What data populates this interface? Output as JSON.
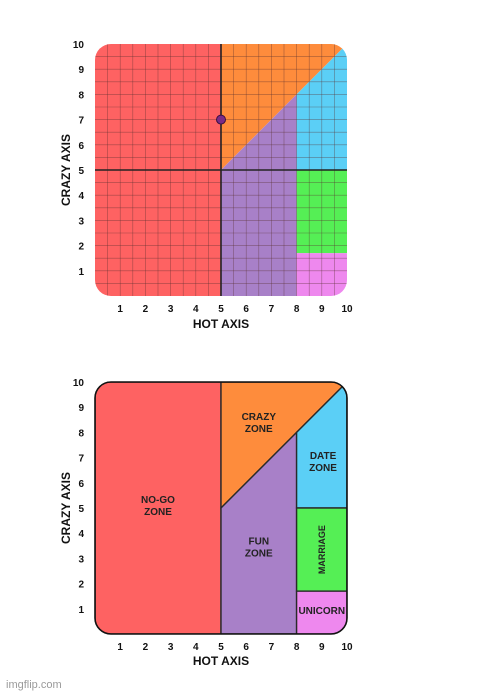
{
  "colors": {
    "nogo": "#fe6262",
    "crazy": "#fe8c3c",
    "fun": "#a880c8",
    "date": "#5bcff6",
    "marriage": "#55ef55",
    "unicorn": "#ee88ee",
    "dot": "#7b2a86",
    "grid": "#5a3030"
  },
  "top_chart": {
    "xlabel": "HOT AXIS",
    "ylabel": "CRAZY AXIS",
    "x_ticks": [
      "1",
      "2",
      "3",
      "4",
      "5",
      "6",
      "7",
      "8",
      "9",
      "10"
    ],
    "y_ticks": [
      "1",
      "2",
      "3",
      "4",
      "5",
      "6",
      "7",
      "8",
      "9",
      "10"
    ],
    "point": {
      "x": 5,
      "y": 7
    }
  },
  "bottom_chart": {
    "xlabel": "HOT AXIS",
    "ylabel": "CRAZY AXIS",
    "x_ticks": [
      "1",
      "2",
      "3",
      "4",
      "5",
      "6",
      "7",
      "8",
      "9",
      "10"
    ],
    "y_ticks": [
      "1",
      "2",
      "3",
      "4",
      "5",
      "6",
      "7",
      "8",
      "9",
      "10"
    ],
    "zones": {
      "nogo": [
        "NO-GO",
        "ZONE"
      ],
      "crazy": [
        "CRAZY",
        "ZONE"
      ],
      "date": [
        "DATE",
        "ZONE"
      ],
      "fun": [
        "FUN",
        "ZONE"
      ],
      "marriage": "MARRIAGE",
      "unicorn": "UNICORN"
    }
  },
  "watermark": "imgflip.com"
}
